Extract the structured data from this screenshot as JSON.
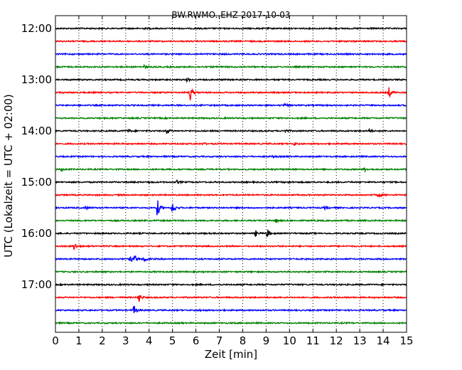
{
  "chart_data": {
    "type": "line",
    "title": "BW.RWMO..EHZ 2017-10-03",
    "xlabel": "Zeit  [min]",
    "ylabel": "UTC (Lokalzeit = UTC + 02:00)",
    "xlim": [
      0,
      15
    ],
    "x_ticks": [
      0,
      1,
      2,
      3,
      4,
      5,
      6,
      7,
      8,
      9,
      10,
      11,
      12,
      13,
      14,
      15
    ],
    "y_tick_labels": [
      "12:00",
      "13:00",
      "14:00",
      "15:00",
      "16:00",
      "17:00"
    ],
    "grid": "vertical dotted",
    "trace_interval_minutes": 15,
    "colors_cycle": [
      "#000000",
      "#ff0000",
      "#0000ff",
      "#008000"
    ],
    "traces": [
      {
        "start": "12:00",
        "events": [
          {
            "t": 3.8,
            "amp": 0.05
          }
        ]
      },
      {
        "start": "12:15",
        "events": []
      },
      {
        "start": "12:30",
        "events": []
      },
      {
        "start": "12:45",
        "events": [
          {
            "t": 3.8,
            "amp": 0.15
          }
        ]
      },
      {
        "start": "13:00",
        "events": [
          {
            "t": 5.6,
            "amp": 0.2
          }
        ]
      },
      {
        "start": "13:15",
        "events": [
          {
            "t": 5.75,
            "amp": 0.9
          },
          {
            "t": 14.25,
            "amp": 0.55
          }
        ]
      },
      {
        "start": "13:30",
        "events": [
          {
            "t": 9.8,
            "amp": 0.12
          }
        ]
      },
      {
        "start": "13:45",
        "events": []
      },
      {
        "start": "14:00",
        "events": [
          {
            "t": 3.1,
            "amp": 0.2
          },
          {
            "t": 4.75,
            "amp": 0.35
          },
          {
            "t": 9.8,
            "amp": 0.18
          },
          {
            "t": 13.4,
            "amp": 0.15
          }
        ]
      },
      {
        "start": "14:15",
        "events": [
          {
            "t": 6.3,
            "amp": 0.12
          },
          {
            "t": 10.2,
            "amp": 0.15
          }
        ]
      },
      {
        "start": "14:30",
        "events": [
          {
            "t": 9.3,
            "amp": 0.08
          }
        ]
      },
      {
        "start": "14:45",
        "events": [
          {
            "t": 0.25,
            "amp": 0.15
          },
          {
            "t": 13.2,
            "amp": 0.18
          }
        ]
      },
      {
        "start": "15:00",
        "events": [
          {
            "t": 4.0,
            "amp": 0.12
          },
          {
            "t": 5.2,
            "amp": 0.18
          },
          {
            "t": 9.9,
            "amp": 0.1
          }
        ]
      },
      {
        "start": "15:15",
        "events": [
          {
            "t": 13.8,
            "amp": 0.3
          }
        ]
      },
      {
        "start": "15:30",
        "events": [
          {
            "t": 1.3,
            "amp": 0.15
          },
          {
            "t": 4.35,
            "amp": 1.0
          },
          {
            "t": 5.0,
            "amp": 0.8
          },
          {
            "t": 11.5,
            "amp": 0.15
          }
        ]
      },
      {
        "start": "15:45",
        "events": [
          {
            "t": 9.4,
            "amp": 0.22
          }
        ]
      },
      {
        "start": "16:00",
        "events": [
          {
            "t": 8.55,
            "amp": 0.3
          },
          {
            "t": 9.05,
            "amp": 0.45
          }
        ]
      },
      {
        "start": "16:15",
        "events": [
          {
            "t": 0.8,
            "amp": 0.45
          }
        ]
      },
      {
        "start": "16:30",
        "events": [
          {
            "t": 3.2,
            "amp": 0.4
          },
          {
            "t": 3.4,
            "amp": 0.35
          },
          {
            "t": 3.8,
            "amp": 0.25
          }
        ]
      },
      {
        "start": "16:45",
        "events": []
      },
      {
        "start": "17:00",
        "events": []
      },
      {
        "start": "17:15",
        "events": [
          {
            "t": 3.55,
            "amp": 0.6
          }
        ]
      },
      {
        "start": "17:30",
        "events": [
          {
            "t": 3.35,
            "amp": 0.5
          },
          {
            "t": 6.2,
            "amp": 0.1
          }
        ]
      },
      {
        "start": "17:45",
        "events": []
      }
    ]
  }
}
